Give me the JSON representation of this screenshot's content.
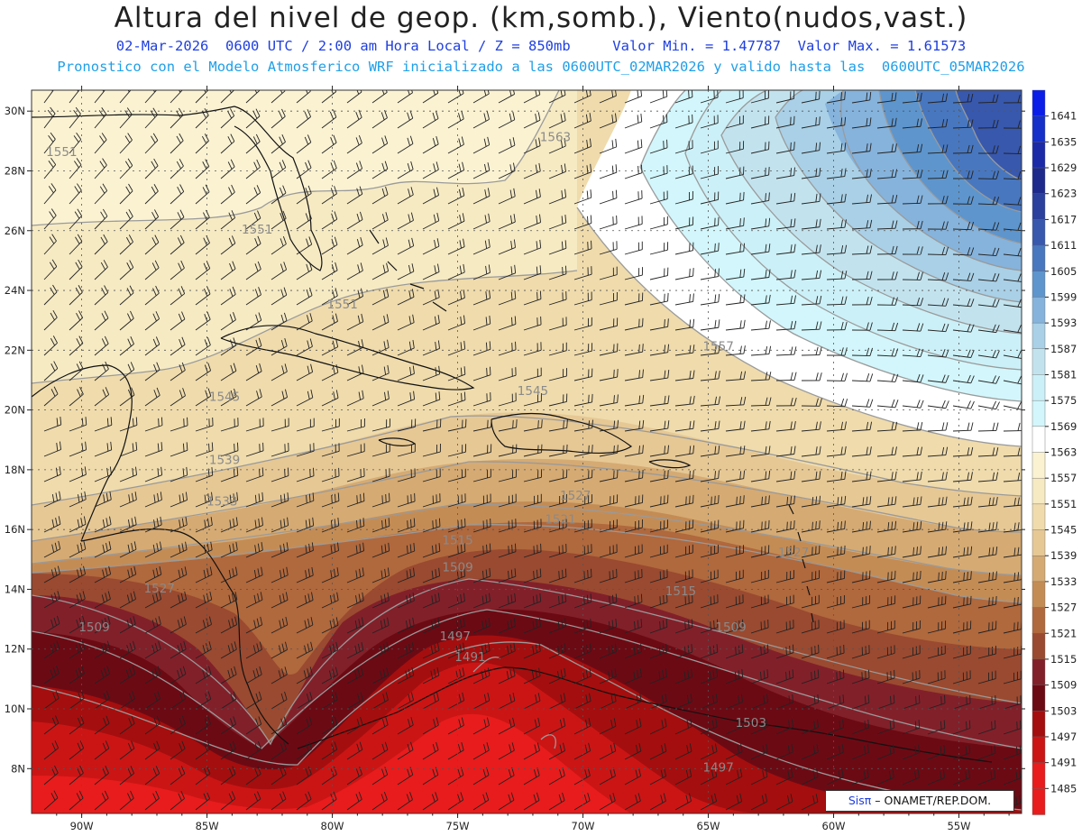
{
  "header": {
    "title": "Altura del nivel de geop. (km,somb.), Viento(nudos,vast.)",
    "subtitle_line1": "02-Mar-2026  0600 UTC / 2:00 am Hora Local / Z = 850mb     Valor Min. = 1.47787  Valor Max. = 1.61573",
    "subtitle_line2": "Pronostico con el Modelo Atmosferico WRF inicializado a las 0600UTC_02MAR2026 y valido hasta las  0600UTC_05MAR2026"
  },
  "map": {
    "projection_extent": {
      "lon_min": -92,
      "lon_max": -52.5,
      "lat_min": 6.5,
      "lat_max": 30.7
    },
    "lon_ticks": [
      {
        "value": -90,
        "label": "90W"
      },
      {
        "value": -85,
        "label": "85W"
      },
      {
        "value": -80,
        "label": "80W"
      },
      {
        "value": -75,
        "label": "75W"
      },
      {
        "value": -70,
        "label": "70W"
      },
      {
        "value": -65,
        "label": "65W"
      },
      {
        "value": -60,
        "label": "60W"
      },
      {
        "value": -55,
        "label": "55W"
      }
    ],
    "lat_ticks": [
      {
        "value": 30,
        "label": "30N"
      },
      {
        "value": 28,
        "label": "28N"
      },
      {
        "value": 26,
        "label": "26N"
      },
      {
        "value": 24,
        "label": "24N"
      },
      {
        "value": 22,
        "label": "22N"
      },
      {
        "value": 20,
        "label": "20N"
      },
      {
        "value": 18,
        "label": "18N"
      },
      {
        "value": 16,
        "label": "16N"
      },
      {
        "value": 14,
        "label": "14N"
      },
      {
        "value": 12,
        "label": "12N"
      },
      {
        "value": 10,
        "label": "10N"
      },
      {
        "value": 8,
        "label": "8N"
      }
    ],
    "contour_labels": [
      {
        "text": "1551",
        "lon": -90.8,
        "lat": 28.5
      },
      {
        "text": "1551",
        "lon": -83.0,
        "lat": 25.9
      },
      {
        "text": "1563",
        "lon": -71.1,
        "lat": 29.0
      },
      {
        "text": "1551",
        "lon": -79.6,
        "lat": 23.4
      },
      {
        "text": "1557",
        "lon": -64.6,
        "lat": 22.0
      },
      {
        "text": "1545",
        "lon": -84.3,
        "lat": 20.3
      },
      {
        "text": "1545",
        "lon": -72.0,
        "lat": 20.5
      },
      {
        "text": "1539",
        "lon": -84.3,
        "lat": 18.2
      },
      {
        "text": "1533",
        "lon": -84.4,
        "lat": 16.8
      },
      {
        "text": "1527",
        "lon": -70.3,
        "lat": 17.0
      },
      {
        "text": "1521",
        "lon": -70.9,
        "lat": 16.2
      },
      {
        "text": "1515",
        "lon": -75.0,
        "lat": 15.5
      },
      {
        "text": "1527",
        "lon": -61.6,
        "lat": 15.1
      },
      {
        "text": "1509",
        "lon": -75.0,
        "lat": 14.6
      },
      {
        "text": "1527",
        "lon": -86.9,
        "lat": 13.9
      },
      {
        "text": "1515",
        "lon": -66.1,
        "lat": 13.8
      },
      {
        "text": "1509",
        "lon": -89.5,
        "lat": 12.6
      },
      {
        "text": "1509",
        "lon": -64.1,
        "lat": 12.6
      },
      {
        "text": "1497",
        "lon": -75.1,
        "lat": 12.3
      },
      {
        "text": "1491",
        "lon": -74.5,
        "lat": 11.6
      },
      {
        "text": "1503",
        "lon": -63.3,
        "lat": 9.4
      },
      {
        "text": "1497",
        "lon": -64.6,
        "lat": 7.9
      }
    ]
  },
  "colorbar": {
    "levels": [
      "1641",
      "1635",
      "1629",
      "1623",
      "1617",
      "1611",
      "1605",
      "1599",
      "1593",
      "1587",
      "1581",
      "1575",
      "1569",
      "1563",
      "1557",
      "1551",
      "1545",
      "1539",
      "1533",
      "1527",
      "1521",
      "1515",
      "1509",
      "1503",
      "1497",
      "1491",
      "1485"
    ],
    "colors": [
      "#0a1ee8",
      "#1530c8",
      "#1c2aa8",
      "#1e2a8c",
      "#2b3f9c",
      "#3858ad",
      "#4877bf",
      "#5e95cd",
      "#86b3dc",
      "#a9d0e6",
      "#c2e3ee",
      "#ccf0f7",
      "#d2f6fb",
      "#ffffff",
      "#fbf2d2",
      "#f6eac3",
      "#efdbac",
      "#e6c895",
      "#d5aa73",
      "#c48c55",
      "#b0683d",
      "#9a4a30",
      "#82202a",
      "#6c0a14",
      "#a50e0e",
      "#cb1515",
      "#e81c1c"
    ]
  },
  "credit": {
    "logo": "Sisπ",
    "text": "– ONAMET/REP.DOM."
  }
}
